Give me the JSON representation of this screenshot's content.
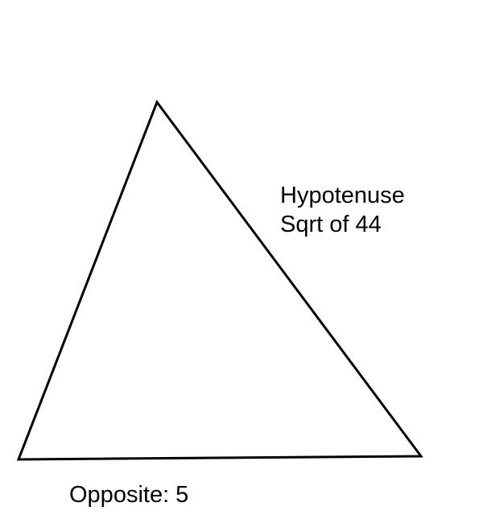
{
  "diagram": {
    "shape": "triangle",
    "line_color": "#000000",
    "background": "#ffffff"
  },
  "labels": {
    "hypotenuse_title": "Hypotenuse",
    "hypotenuse_value": "Sqrt of 44",
    "opposite": "Opposite: 5"
  }
}
